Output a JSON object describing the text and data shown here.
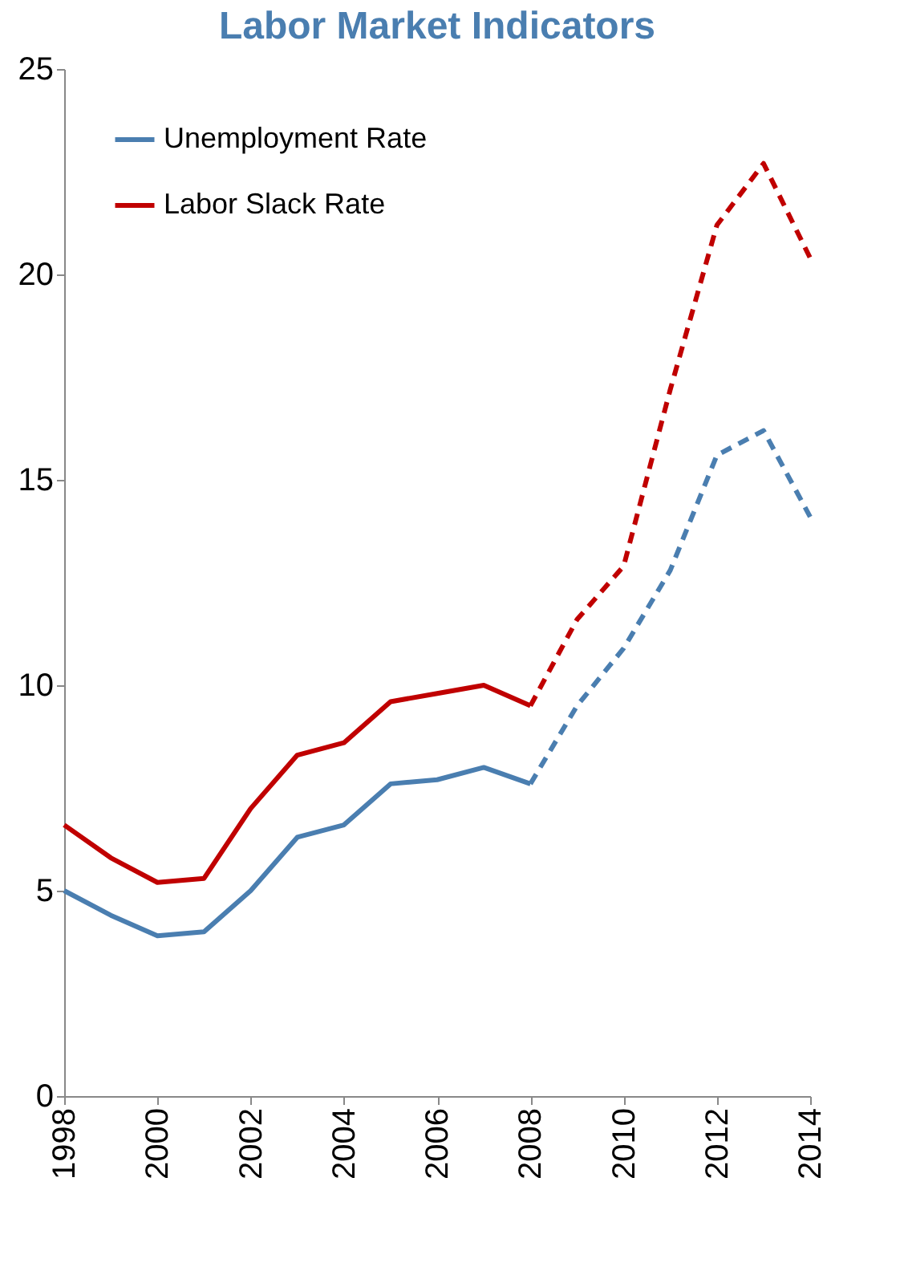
{
  "chart_data": {
    "type": "line",
    "title": "Labor Market Indicators",
    "x": [
      1998,
      1999,
      2000,
      2001,
      2002,
      2003,
      2004,
      2005,
      2006,
      2007,
      2008,
      2009,
      2010,
      2011,
      2012,
      2013,
      2014
    ],
    "series": [
      {
        "name": "Unemployment Rate",
        "color": "#4a7eb0",
        "line_style": "solid",
        "values": [
          5.0,
          4.4,
          3.9,
          4.0,
          5.0,
          6.3,
          6.6,
          7.6,
          7.7,
          8.0,
          7.6,
          null,
          null,
          null,
          null,
          null,
          null
        ]
      },
      {
        "name": "Labor Slack Rate",
        "color": "#c00000",
        "line_style": "solid",
        "values": [
          6.6,
          5.8,
          5.2,
          5.3,
          7.0,
          8.3,
          8.6,
          9.6,
          9.8,
          10.0,
          9.5,
          null,
          null,
          null,
          null,
          null,
          null
        ]
      },
      {
        "color": "#4a7eb0",
        "line_style": "dashed",
        "values": [
          null,
          null,
          null,
          null,
          null,
          null,
          null,
          null,
          null,
          null,
          7.6,
          9.5,
          10.9,
          12.8,
          15.6,
          16.2,
          14.1
        ]
      },
      {
        "color": "#c00000",
        "line_style": "dashed",
        "values": [
          null,
          null,
          null,
          null,
          null,
          null,
          null,
          null,
          null,
          null,
          9.5,
          11.6,
          12.9,
          17.2,
          21.2,
          22.7,
          20.4
        ]
      }
    ],
    "xlim": [
      1998,
      2014
    ],
    "xticks": [
      1998,
      2000,
      2002,
      2004,
      2006,
      2008,
      2010,
      2012,
      2014
    ],
    "ylim": [
      0,
      25
    ],
    "yticks": [
      0,
      5,
      10,
      15,
      20,
      25
    ],
    "grid": false,
    "legend": "top left",
    "marker": "none"
  }
}
